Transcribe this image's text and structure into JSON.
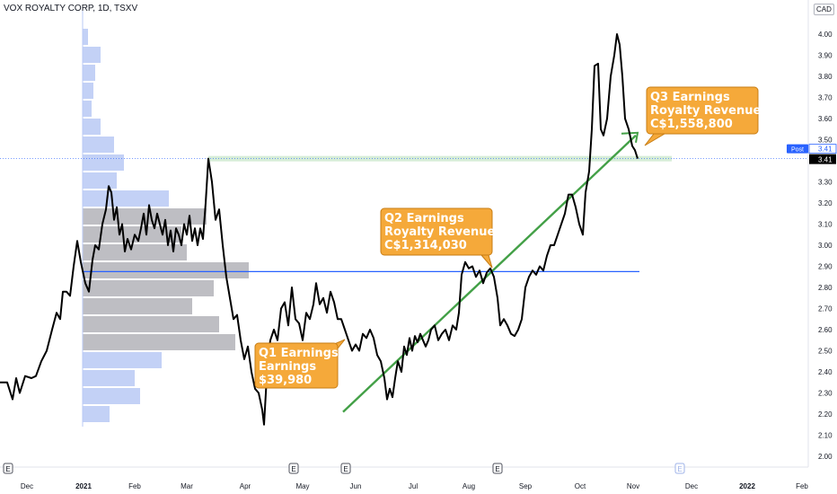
{
  "header": {
    "symbol_line": "VOX ROYALTY CORP, 1D, TSXV",
    "currency": "CAD"
  },
  "colors": {
    "price_line": "#000000",
    "volume_profile_blue": "#b9c9f5",
    "volume_profile_gray": "#b3b3b8",
    "poc_line": "#2962ff",
    "trend_line": "#43a047",
    "callout_fill": "#f5a93a",
    "callout_border": "#c77d14",
    "price_tag_blue": "#2962ff",
    "price_tag_black": "#000000",
    "resistance_band": "#a5d6a7"
  },
  "chart_data": {
    "type": "line",
    "y_axis": {
      "ticks": [
        "4.00",
        "3.90",
        "3.80",
        "3.70",
        "3.60",
        "3.50",
        "3.30",
        "3.20",
        "3.10",
        "3.00",
        "2.90",
        "2.80",
        "2.70",
        "2.60",
        "2.50",
        "2.40",
        "2.30",
        "2.20",
        "2.10",
        "2.00"
      ],
      "ylim": [
        1.95,
        4.13
      ]
    },
    "x_axis": {
      "ticks": [
        "Dec",
        "2021",
        "Feb",
        "Mar",
        "Apr",
        "May",
        "Jun",
        "Jul",
        "Aug",
        "Sep",
        "Oct",
        "Nov",
        "Dec",
        "2022",
        "Feb"
      ],
      "bold_ticks": [
        "2021",
        "2022"
      ]
    },
    "series": [
      {
        "values": [
          [
            0,
            2.35
          ],
          [
            8,
            2.35
          ],
          [
            14,
            2.27
          ],
          [
            18,
            2.37
          ],
          [
            22,
            2.3
          ],
          [
            28,
            2.38
          ],
          [
            35,
            2.37
          ],
          [
            40,
            2.38
          ],
          [
            46,
            2.45
          ],
          [
            52,
            2.5
          ],
          [
            58,
            2.6
          ],
          [
            63,
            2.68
          ],
          [
            67,
            2.65
          ],
          [
            70,
            2.78
          ],
          [
            74,
            2.78
          ],
          [
            78,
            2.76
          ],
          [
            82,
            2.9
          ],
          [
            86,
            3.02
          ],
          [
            90,
            2.92
          ],
          [
            95,
            2.82
          ],
          [
            99,
            2.78
          ],
          [
            103,
            2.93
          ],
          [
            106,
            3.0
          ],
          [
            110,
            2.98
          ],
          [
            114,
            3.1
          ],
          [
            118,
            3.17
          ],
          [
            121,
            3.28
          ],
          [
            124,
            3.25
          ],
          [
            127,
            3.12
          ],
          [
            130,
            3.18
          ],
          [
            133,
            3.05
          ],
          [
            136,
            3.1
          ],
          [
            139,
            2.97
          ],
          [
            142,
            3.03
          ],
          [
            146,
            2.98
          ],
          [
            150,
            3.05
          ],
          [
            154,
            3.02
          ],
          [
            157,
            3.08
          ],
          [
            160,
            3.15
          ],
          [
            163,
            3.05
          ],
          [
            166,
            3.19
          ],
          [
            169,
            3.12
          ],
          [
            172,
            3.08
          ],
          [
            175,
            3.15
          ],
          [
            178,
            3.1
          ],
          [
            181,
            3.05
          ],
          [
            184,
            3.12
          ],
          [
            187,
            3.0
          ],
          [
            190,
            3.07
          ],
          [
            193,
            2.97
          ],
          [
            196,
            3.08
          ],
          [
            199,
            3.05
          ],
          [
            202,
            3.0
          ],
          [
            205,
            3.1
          ],
          [
            208,
            3.05
          ],
          [
            211,
            3.14
          ],
          [
            214,
            3.02
          ],
          [
            217,
            3.08
          ],
          [
            220,
            3.0
          ],
          [
            223,
            3.08
          ],
          [
            226,
            3.03
          ],
          [
            229,
            3.2
          ],
          [
            232,
            3.41
          ],
          [
            236,
            3.3
          ],
          [
            240,
            3.12
          ],
          [
            244,
            3.17
          ],
          [
            248,
            3.0
          ],
          [
            252,
            2.85
          ],
          [
            256,
            2.75
          ],
          [
            260,
            2.65
          ],
          [
            264,
            2.67
          ],
          [
            268,
            2.55
          ],
          [
            272,
            2.46
          ],
          [
            276,
            2.52
          ],
          [
            280,
            2.4
          ],
          [
            284,
            2.32
          ],
          [
            288,
            2.3
          ],
          [
            292,
            2.22
          ],
          [
            294,
            2.15
          ],
          [
            298,
            2.45
          ],
          [
            301,
            2.55
          ],
          [
            305,
            2.6
          ],
          [
            309,
            2.55
          ],
          [
            313,
            2.7
          ],
          [
            317,
            2.73
          ],
          [
            321,
            2.62
          ],
          [
            325,
            2.8
          ],
          [
            329,
            2.65
          ],
          [
            333,
            2.63
          ],
          [
            337,
            2.55
          ],
          [
            341,
            2.68
          ],
          [
            345,
            2.65
          ],
          [
            349,
            2.72
          ],
          [
            352,
            2.82
          ],
          [
            356,
            2.72
          ],
          [
            360,
            2.75
          ],
          [
            364,
            2.68
          ],
          [
            368,
            2.78
          ],
          [
            372,
            2.73
          ],
          [
            376,
            2.65
          ],
          [
            380,
            2.65
          ],
          [
            384,
            2.6
          ],
          [
            388,
            2.55
          ],
          [
            392,
            2.5
          ],
          [
            396,
            2.53
          ],
          [
            400,
            2.5
          ],
          [
            404,
            2.58
          ],
          [
            408,
            2.56
          ],
          [
            412,
            2.6
          ],
          [
            416,
            2.56
          ],
          [
            420,
            2.48
          ],
          [
            424,
            2.45
          ],
          [
            428,
            2.37
          ],
          [
            431,
            2.27
          ],
          [
            434,
            2.32
          ],
          [
            437,
            2.28
          ],
          [
            440,
            2.37
          ],
          [
            443,
            2.45
          ],
          [
            447,
            2.4
          ],
          [
            450,
            2.52
          ],
          [
            453,
            2.48
          ],
          [
            456,
            2.56
          ],
          [
            459,
            2.5
          ],
          [
            462,
            2.57
          ],
          [
            465,
            2.54
          ],
          [
            468,
            2.58
          ],
          [
            471,
            2.55
          ],
          [
            474,
            2.52
          ],
          [
            477,
            2.55
          ],
          [
            480,
            2.6
          ],
          [
            484,
            2.62
          ],
          [
            488,
            2.55
          ],
          [
            492,
            2.58
          ],
          [
            496,
            2.6
          ],
          [
            500,
            2.55
          ],
          [
            504,
            2.62
          ],
          [
            508,
            2.6
          ],
          [
            511,
            2.68
          ],
          [
            514,
            2.86
          ],
          [
            518,
            2.92
          ],
          [
            522,
            2.89
          ],
          [
            526,
            2.9
          ],
          [
            530,
            2.85
          ],
          [
            534,
            2.88
          ],
          [
            538,
            2.82
          ],
          [
            542,
            2.87
          ],
          [
            546,
            2.89
          ],
          [
            550,
            2.85
          ],
          [
            554,
            2.75
          ],
          [
            557,
            2.62
          ],
          [
            561,
            2.65
          ],
          [
            565,
            2.62
          ],
          [
            569,
            2.58
          ],
          [
            573,
            2.57
          ],
          [
            577,
            2.6
          ],
          [
            581,
            2.65
          ],
          [
            585,
            2.8
          ],
          [
            589,
            2.85
          ],
          [
            593,
            2.88
          ],
          [
            597,
            2.86
          ],
          [
            601,
            2.9
          ],
          [
            605,
            2.88
          ],
          [
            609,
            2.95
          ],
          [
            613,
            3.0
          ],
          [
            617,
            3.0
          ],
          [
            621,
            3.05
          ],
          [
            625,
            3.1
          ],
          [
            629,
            3.15
          ],
          [
            633,
            3.24
          ],
          [
            637,
            3.24
          ],
          [
            641,
            3.18
          ],
          [
            645,
            3.1
          ],
          [
            649,
            3.05
          ],
          [
            652,
            3.25
          ],
          [
            656,
            3.35
          ],
          [
            659,
            3.55
          ],
          [
            662,
            3.85
          ],
          [
            666,
            3.86
          ],
          [
            669,
            3.55
          ],
          [
            672,
            3.52
          ],
          [
            676,
            3.6
          ],
          [
            680,
            3.8
          ],
          [
            684,
            3.9
          ],
          [
            687,
            4.0
          ],
          [
            690,
            3.95
          ],
          [
            693,
            3.8
          ],
          [
            696,
            3.6
          ],
          [
            700,
            3.55
          ],
          [
            704,
            3.47
          ],
          [
            707,
            3.45
          ],
          [
            710,
            3.41
          ]
        ]
      }
    ],
    "y_labels": {
      "post_label": "Post",
      "post_value": "3.41",
      "last_value": "3.41"
    },
    "annotations": [
      {
        "lines": [
          "Q1 Earnings",
          "Earnings",
          "$39,980"
        ]
      },
      {
        "lines": [
          "Q2 Earnings",
          "Royalty Revenue",
          "C$1,314,030"
        ]
      },
      {
        "lines": [
          "Q3 Earnings",
          "Royalty Revenue",
          "C$1,558,800"
        ]
      }
    ],
    "event_markers": [
      "E",
      "E",
      "E",
      "E",
      "E"
    ],
    "poc_level": 2.875,
    "resistance_level": 3.41,
    "trend_line": {
      "from": [
        382,
        2.21
      ],
      "to": [
        708,
        3.52
      ]
    }
  }
}
